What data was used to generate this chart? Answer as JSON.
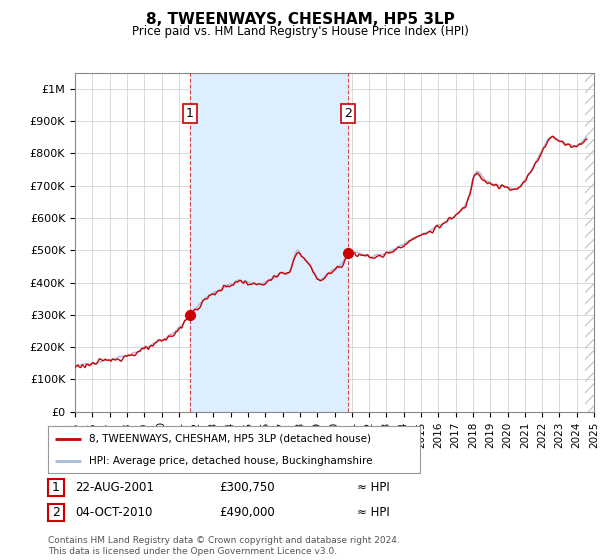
{
  "title": "8, TWEENWAYS, CHESHAM, HP5 3LP",
  "subtitle": "Price paid vs. HM Land Registry's House Price Index (HPI)",
  "ylim": [
    0,
    1050000
  ],
  "yticks": [
    0,
    100000,
    200000,
    300000,
    400000,
    500000,
    600000,
    700000,
    800000,
    900000,
    1000000
  ],
  "ytick_labels": [
    "£0",
    "£100K",
    "£200K",
    "£300K",
    "£400K",
    "£500K",
    "£600K",
    "£700K",
    "£800K",
    "£900K",
    "£1M"
  ],
  "hpi_color": "#aabbdd",
  "price_color": "#cc0000",
  "grid_color": "#cccccc",
  "background_color": "#ffffff",
  "plot_bg_color": "#ffffff",
  "shade_color": "#ddeeff",
  "annotation1_label": "1",
  "annotation1_date": "22-AUG-2001",
  "annotation1_price": 300750,
  "annotation1_approx": "≈ HPI",
  "annotation2_label": "2",
  "annotation2_date": "04-OCT-2010",
  "annotation2_price": 490000,
  "annotation2_approx": "≈ HPI",
  "legend_line1": "8, TWEENWAYS, CHESHAM, HP5 3LP (detached house)",
  "legend_line2": "HPI: Average price, detached house, Buckinghamshire",
  "footnote": "Contains HM Land Registry data © Crown copyright and database right 2024.\nThis data is licensed under the Open Government Licence v3.0.",
  "sale1_year": 2001.65,
  "sale1_price": 300750,
  "sale2_year": 2010.78,
  "sale2_price": 490000,
  "xmin": 1995,
  "xmax": 2025
}
